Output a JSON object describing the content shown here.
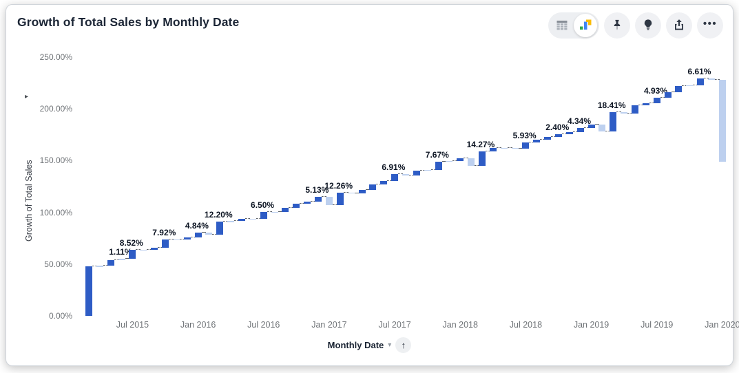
{
  "header": {
    "title": "Growth of Total Sales by Monthly Date"
  },
  "toolbar": {
    "view_toggle": {
      "active": "chart",
      "options": [
        "table",
        "chart"
      ]
    },
    "buttons": [
      "pin",
      "insights",
      "export",
      "more"
    ]
  },
  "icons": {
    "more": "•••",
    "caret_down": "▾",
    "sort_asc": "↑",
    "y_expand": "▸"
  },
  "colors": {
    "increase": "#2e5cc5",
    "decrease": "#bdd0ef",
    "title": "#1c2636",
    "axis_text": "#6f7377",
    "connector": "#5d6268",
    "icon_green": "#34a853",
    "icon_blue": "#4285f4",
    "icon_yellow": "#fbbc04"
  },
  "chart_data": {
    "type": "waterfall",
    "title": "Growth of Total Sales by Monthly Date",
    "grid": "off",
    "legend": "none",
    "y_axis": {
      "title": "Growth of Total Sales",
      "format": "percent",
      "min": 0,
      "max": 250,
      "ticks": [
        {
          "label": "0.00%",
          "value": 0
        },
        {
          "label": "50.00%",
          "value": 50
        },
        {
          "label": "100.00%",
          "value": 100
        },
        {
          "label": "150.00%",
          "value": 150
        },
        {
          "label": "200.00%",
          "value": 200
        },
        {
          "label": "250.00%",
          "value": 250
        }
      ]
    },
    "x_axis": {
      "title": "Monthly Date",
      "sort": "ascending",
      "ticks": [
        {
          "label": "Jul 2015",
          "i": 4
        },
        {
          "label": "Jan 2016",
          "i": 10
        },
        {
          "label": "Jul 2016",
          "i": 16
        },
        {
          "label": "Jan 2017",
          "i": 22
        },
        {
          "label": "Jul 2017",
          "i": 28
        },
        {
          "label": "Jan 2018",
          "i": 34
        },
        {
          "label": "Jul 2018",
          "i": 40
        },
        {
          "label": "Jan 2019",
          "i": 46
        },
        {
          "label": "Jul 2019",
          "i": 52
        },
        {
          "label": "Jan 2020",
          "i": 58
        }
      ]
    },
    "bars": [
      {
        "m": "Mar 2015",
        "v": 48.0
      },
      {
        "m": "Apr 2015",
        "v": 0.3
      },
      {
        "m": "May 2015",
        "v": 5.6
      },
      {
        "m": "Jun 2015",
        "v": 1.11,
        "l": "1.11%"
      },
      {
        "m": "Jul 2015",
        "v": 8.52,
        "l": "8.52%"
      },
      {
        "m": "Aug 2015",
        "v": 0.5
      },
      {
        "m": "Sep 2015",
        "v": 1.6
      },
      {
        "m": "Oct 2015",
        "v": 7.92,
        "l": "7.92%"
      },
      {
        "m": "Nov 2015",
        "v": 0.4
      },
      {
        "m": "Dec 2015",
        "v": 1.6
      },
      {
        "m": "Jan 2016",
        "v": 4.84,
        "l": "4.84%"
      },
      {
        "m": "Feb 2016",
        "v": -1.8
      },
      {
        "m": "Mar 2016",
        "v": 12.2,
        "l": "12.20%"
      },
      {
        "m": "Apr 2016",
        "v": 0.9
      },
      {
        "m": "May 2016",
        "v": 1.8
      },
      {
        "m": "Jun 2016",
        "v": 0.4
      },
      {
        "m": "Jul 2016",
        "v": 6.5,
        "l": "6.50%"
      },
      {
        "m": "Aug 2016",
        "v": 0.3
      },
      {
        "m": "Sep 2016",
        "v": 3.5
      },
      {
        "m": "Oct 2016",
        "v": 4.0
      },
      {
        "m": "Nov 2016",
        "v": 2.0
      },
      {
        "m": "Dec 2016",
        "v": 5.13,
        "l": "5.13%"
      },
      {
        "m": "Jan 2017",
        "v": -8.5
      },
      {
        "m": "Feb 2017",
        "v": 12.26,
        "l": "12.26%"
      },
      {
        "m": "Mar 2017",
        "v": -0.5
      },
      {
        "m": "Apr 2017",
        "v": 3.0
      },
      {
        "m": "May 2017",
        "v": 5.5
      },
      {
        "m": "Jun 2017",
        "v": 3.0
      },
      {
        "m": "Jul 2017",
        "v": 6.91,
        "l": "6.91%"
      },
      {
        "m": "Aug 2017",
        "v": -1.2
      },
      {
        "m": "Sep 2017",
        "v": 4.5
      },
      {
        "m": "Oct 2017",
        "v": 0.8
      },
      {
        "m": "Nov 2017",
        "v": 7.67,
        "l": "7.67%"
      },
      {
        "m": "Dec 2017",
        "v": 1.0
      },
      {
        "m": "Jan 2018",
        "v": 2.2
      },
      {
        "m": "Feb 2018",
        "v": -7.2
      },
      {
        "m": "Mar 2018",
        "v": 14.27,
        "l": "14.27%"
      },
      {
        "m": "Apr 2018",
        "v": 3.0
      },
      {
        "m": "May 2018",
        "v": 0.5
      },
      {
        "m": "Jun 2018",
        "v": -0.8
      },
      {
        "m": "Jul 2018",
        "v": 5.93,
        "l": "5.93%"
      },
      {
        "m": "Aug 2018",
        "v": 2.5
      },
      {
        "m": "Sep 2018",
        "v": 3.0
      },
      {
        "m": "Oct 2018",
        "v": 2.4,
        "l": "2.40%"
      },
      {
        "m": "Nov 2018",
        "v": 1.8
      },
      {
        "m": "Dec 2018",
        "v": 4.34,
        "l": "4.34%"
      },
      {
        "m": "Jan 2019",
        "v": 3.0
      },
      {
        "m": "Feb 2019",
        "v": -6.5
      },
      {
        "m": "Mar 2019",
        "v": 18.41,
        "l": "18.41%"
      },
      {
        "m": "Apr 2019",
        "v": -1.0
      },
      {
        "m": "May 2019",
        "v": 8.0
      },
      {
        "m": "Jun 2019",
        "v": 2.0
      },
      {
        "m": "Jul 2019",
        "v": 4.93,
        "l": "4.93%"
      },
      {
        "m": "Aug 2019",
        "v": 5.5
      },
      {
        "m": "Sep 2019",
        "v": 6.0
      },
      {
        "m": "Oct 2019",
        "v": 1.0
      },
      {
        "m": "Nov 2019",
        "v": 6.61,
        "l": "6.61%"
      },
      {
        "m": "Dec 2019",
        "v": -1.5
      },
      {
        "m": "Jan 2020",
        "v": -79.0
      }
    ]
  }
}
